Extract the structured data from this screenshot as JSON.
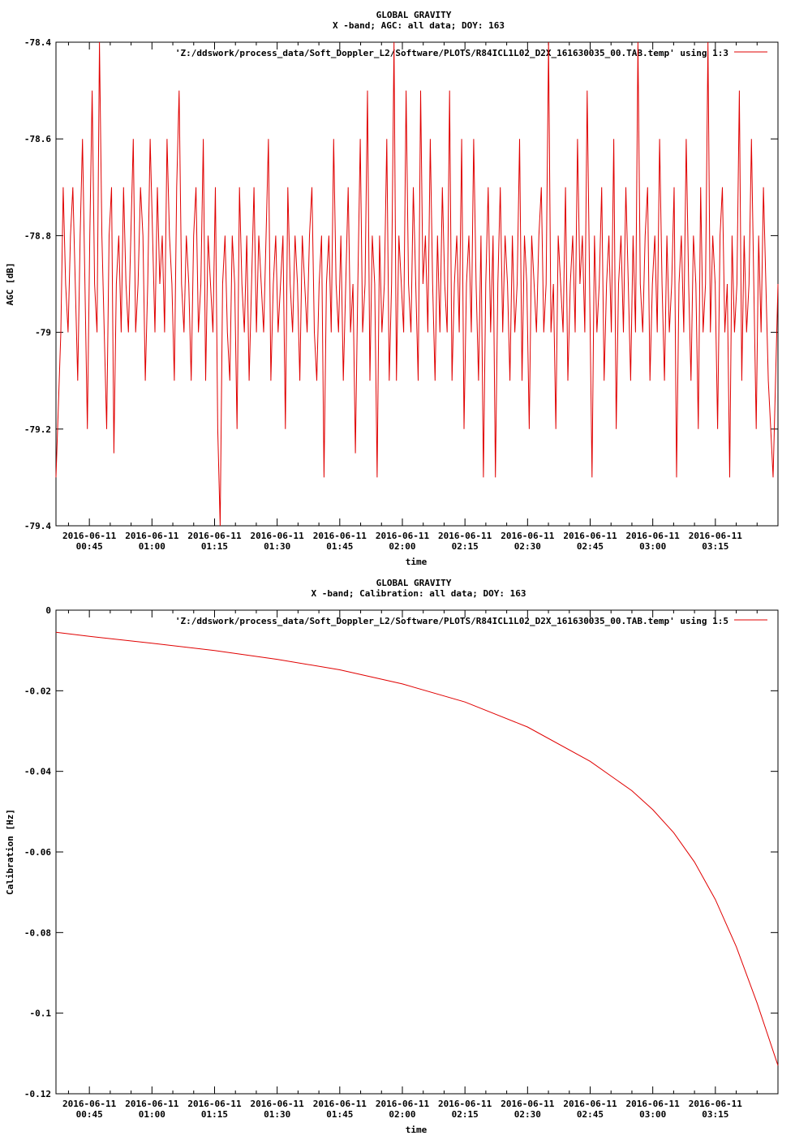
{
  "chart_data": [
    {
      "type": "line",
      "title": "GLOBAL GRAVITY",
      "subtitle": "X -band; AGC: all data; DOY: 163",
      "xlabel": "time",
      "ylabel": "AGC [dB]",
      "ylim": [
        -79.4,
        -78.4
      ],
      "yticks": [
        "-78.4",
        "-78.6",
        "-78.8",
        "-79",
        "-79.2",
        "-79.4"
      ],
      "xlim": [
        "2016-06-11 00:37",
        "2016-06-11 03:30"
      ],
      "xtick_dates": [
        "2016-06-11",
        "2016-06-11",
        "2016-06-11",
        "2016-06-11",
        "2016-06-11",
        "2016-06-11",
        "2016-06-11",
        "2016-06-11",
        "2016-06-11",
        "2016-06-11",
        "2016-06-11"
      ],
      "xtick_times": [
        "00:45",
        "01:00",
        "01:15",
        "01:30",
        "01:45",
        "02:00",
        "02:15",
        "02:30",
        "02:45",
        "03:00",
        "03:15"
      ],
      "legend_position": "top-right",
      "series": [
        {
          "name": "'Z:/ddswork/process_data/Soft_Doppler_L2/Software/PLOTS/R84ICL1L02_D2X_161630035_00.TAB.temp' using 1:3",
          "color": "#e00000",
          "x_start": "2016-06-11 00:37",
          "x_end": "2016-06-11 03:30",
          "values": [
            -79.3,
            -79.15,
            -79.0,
            -78.7,
            -78.9,
            -79.0,
            -78.8,
            -78.7,
            -78.9,
            -79.1,
            -78.8,
            -78.6,
            -78.9,
            -79.2,
            -78.8,
            -78.5,
            -78.9,
            -79.0,
            -78.4,
            -78.8,
            -79.0,
            -79.2,
            -78.8,
            -78.7,
            -79.25,
            -78.9,
            -78.8,
            -79.0,
            -78.7,
            -78.9,
            -79.0,
            -78.8,
            -78.6,
            -79.0,
            -78.9,
            -78.7,
            -78.8,
            -79.1,
            -78.9,
            -78.6,
            -78.8,
            -79.0,
            -78.7,
            -78.9,
            -78.8,
            -79.0,
            -78.6,
            -78.8,
            -78.9,
            -79.1,
            -78.7,
            -78.5,
            -78.9,
            -79.0,
            -78.8,
            -78.9,
            -79.1,
            -78.8,
            -78.7,
            -79.0,
            -78.9,
            -78.6,
            -79.1,
            -78.8,
            -78.9,
            -79.0,
            -78.7,
            -79.2,
            -79.4,
            -78.9,
            -78.8,
            -79.0,
            -79.1,
            -78.8,
            -78.9,
            -79.2,
            -78.7,
            -78.9,
            -79.0,
            -78.8,
            -79.1,
            -78.9,
            -78.7,
            -79.0,
            -78.8,
            -78.9,
            -79.0,
            -78.8,
            -78.6,
            -79.1,
            -78.9,
            -78.8,
            -79.0,
            -78.9,
            -78.8,
            -79.2,
            -78.7,
            -78.9,
            -79.0,
            -78.8,
            -78.9,
            -79.1,
            -78.8,
            -78.9,
            -79.0,
            -78.8,
            -78.7,
            -79.0,
            -79.1,
            -78.9,
            -78.8,
            -79.3,
            -78.9,
            -78.8,
            -79.0,
            -78.6,
            -78.9,
            -79.0,
            -78.8,
            -79.1,
            -78.9,
            -78.7,
            -79.0,
            -78.9,
            -79.25,
            -78.9,
            -78.6,
            -79.0,
            -78.9,
            -78.5,
            -79.1,
            -78.8,
            -78.9,
            -79.3,
            -78.8,
            -79.0,
            -78.9,
            -78.6,
            -79.1,
            -78.9,
            -78.4,
            -79.1,
            -78.8,
            -78.9,
            -79.0,
            -78.5,
            -78.9,
            -79.0,
            -78.7,
            -78.9,
            -79.1,
            -78.5,
            -78.9,
            -78.8,
            -79.0,
            -78.6,
            -78.9,
            -79.1,
            -78.8,
            -79.0,
            -78.7,
            -78.9,
            -79.0,
            -78.5,
            -79.1,
            -78.9,
            -78.8,
            -79.0,
            -78.6,
            -79.2,
            -78.9,
            -78.8,
            -79.0,
            -78.6,
            -78.9,
            -79.1,
            -78.8,
            -79.3,
            -78.9,
            -78.7,
            -79.0,
            -78.8,
            -79.3,
            -78.9,
            -78.7,
            -79.0,
            -78.8,
            -78.9,
            -79.1,
            -78.8,
            -79.0,
            -78.9,
            -78.6,
            -79.1,
            -78.8,
            -78.9,
            -79.2,
            -78.8,
            -78.9,
            -79.0,
            -78.8,
            -78.7,
            -79.0,
            -78.9,
            -78.4,
            -79.0,
            -78.9,
            -79.2,
            -78.8,
            -78.9,
            -79.0,
            -78.7,
            -79.1,
            -78.9,
            -78.8,
            -79.0,
            -78.6,
            -78.9,
            -78.8,
            -79.0,
            -78.5,
            -78.9,
            -79.3,
            -78.8,
            -79.0,
            -78.9,
            -78.7,
            -79.1,
            -78.9,
            -78.8,
            -79.0,
            -78.6,
            -79.2,
            -78.9,
            -78.8,
            -79.0,
            -78.7,
            -78.9,
            -79.1,
            -78.8,
            -79.0,
            -78.4,
            -78.9,
            -79.0,
            -78.8,
            -78.7,
            -79.1,
            -78.9,
            -78.8,
            -79.0,
            -78.6,
            -78.9,
            -79.1,
            -78.8,
            -79.0,
            -78.9,
            -78.7,
            -79.3,
            -78.9,
            -78.8,
            -79.0,
            -78.6,
            -78.9,
            -79.1,
            -78.8,
            -78.9,
            -79.2,
            -78.7,
            -79.0,
            -78.9,
            -78.4,
            -79.0,
            -78.8,
            -78.9,
            -79.2,
            -78.8,
            -78.7,
            -79.0,
            -78.9,
            -79.3,
            -78.8,
            -79.0,
            -78.9,
            -78.5,
            -79.1,
            -78.8,
            -79.0,
            -78.9,
            -78.6,
            -78.9,
            -79.2,
            -78.8,
            -79.0,
            -78.7,
            -78.9,
            -79.1,
            -79.2,
            -79.3,
            -79.1,
            -78.9
          ]
        }
      ]
    },
    {
      "type": "line",
      "title": "GLOBAL GRAVITY",
      "subtitle": "X -band; Calibration: all data; DOY: 163",
      "xlabel": "time",
      "ylabel": "Calibration [Hz]",
      "ylim": [
        -0.12,
        0
      ],
      "yticks": [
        "0",
        "-0.02",
        "-0.04",
        "-0.06",
        "-0.08",
        "-0.1",
        "-0.12"
      ],
      "xlim": [
        "2016-06-11 00:37",
        "2016-06-11 03:30"
      ],
      "xtick_dates": [
        "2016-06-11",
        "2016-06-11",
        "2016-06-11",
        "2016-06-11",
        "2016-06-11",
        "2016-06-11",
        "2016-06-11",
        "2016-06-11",
        "2016-06-11",
        "2016-06-11",
        "2016-06-11"
      ],
      "xtick_times": [
        "00:45",
        "01:00",
        "01:15",
        "01:30",
        "01:45",
        "02:00",
        "02:15",
        "02:30",
        "02:45",
        "03:00",
        "03:15"
      ],
      "legend_position": "top-right",
      "series": [
        {
          "name": "'Z:/ddswork/process_data/Soft_Doppler_L2/Software/PLOTS/R84ICL1L02_D2X_161630035_00.TAB.temp' using 1:5",
          "color": "#e00000",
          "x": [
            "2016-06-11 00:37",
            "2016-06-11 00:45",
            "2016-06-11 01:00",
            "2016-06-11 01:15",
            "2016-06-11 01:30",
            "2016-06-11 01:45",
            "2016-06-11 02:00",
            "2016-06-11 02:15",
            "2016-06-11 02:30",
            "2016-06-11 02:45",
            "2016-06-11 02:55",
            "2016-06-11 03:00",
            "2016-06-11 03:05",
            "2016-06-11 03:10",
            "2016-06-11 03:15",
            "2016-06-11 03:20",
            "2016-06-11 03:25",
            "2016-06-11 03:30"
          ],
          "values": [
            -0.0055,
            -0.0065,
            -0.0082,
            -0.01,
            -0.0122,
            -0.0148,
            -0.0183,
            -0.0228,
            -0.029,
            -0.0375,
            -0.0448,
            -0.0495,
            -0.0552,
            -0.0625,
            -0.0718,
            -0.0835,
            -0.0975,
            -0.113
          ]
        }
      ]
    }
  ]
}
